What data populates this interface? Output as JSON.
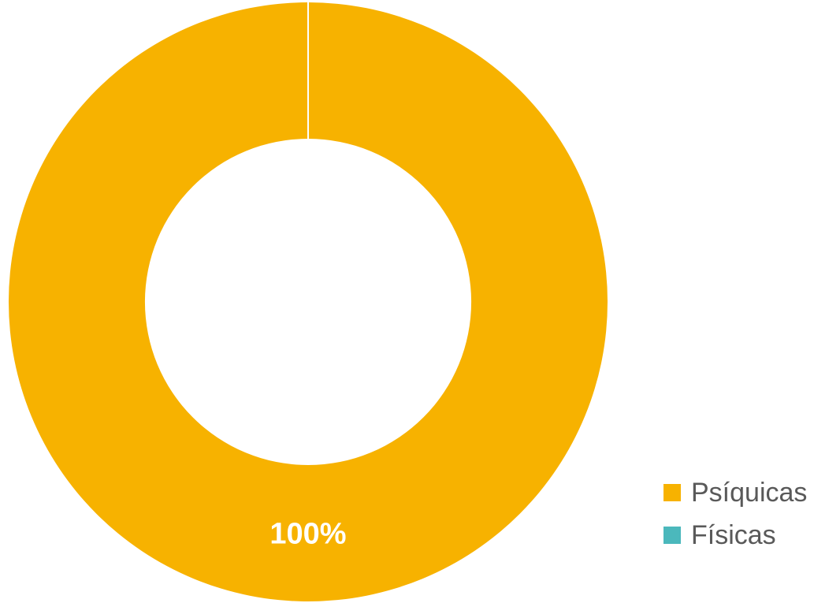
{
  "chart_data": {
    "type": "pie",
    "donut": true,
    "categories": [
      "Psíquicas",
      "Físicas"
    ],
    "values": [
      100,
      0
    ],
    "data_labels": [
      "100%",
      ""
    ],
    "colors": [
      "#F7B200",
      "#4BB8BC"
    ],
    "legend_position": "bottom-right",
    "title": ""
  },
  "legend": {
    "items": [
      {
        "label": "Psíquicas",
        "color": "#F7B200"
      },
      {
        "label": "Físicas",
        "color": "#4BB8BC"
      }
    ]
  }
}
